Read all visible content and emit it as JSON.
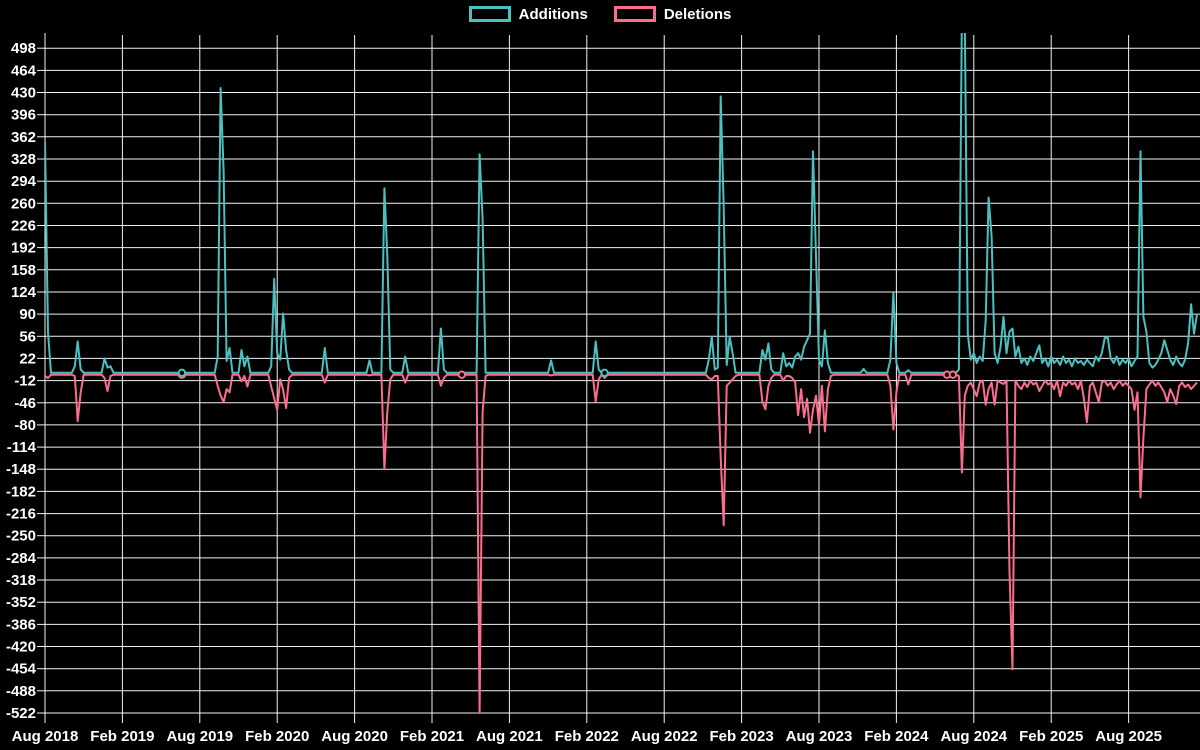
{
  "legend": {
    "items": [
      {
        "label": "Additions",
        "color": "#4bc0c0"
      },
      {
        "label": "Deletions",
        "color": "#fa6d8d"
      }
    ]
  },
  "colors": {
    "background": "#000000",
    "grid": "#f2f2f2",
    "text": "#ffffff",
    "additions": "#4bc0c0",
    "deletions": "#fa6d8d"
  },
  "chart_data": {
    "type": "line",
    "title": "",
    "xlabel": "",
    "ylabel": "",
    "x_unit": "week",
    "x_tick_labels": [
      "Aug 2018",
      "Feb 2019",
      "Aug 2019",
      "Feb 2020",
      "Aug 2020",
      "Feb 2021",
      "Aug 2021",
      "Feb 2022",
      "Aug 2022",
      "Feb 2023",
      "Aug 2023",
      "Feb 2024",
      "Aug 2024",
      "Feb 2025",
      "Aug 2025"
    ],
    "y_tick_labels": [
      498,
      464,
      430,
      396,
      362,
      328,
      294,
      260,
      226,
      192,
      158,
      124,
      90,
      56,
      22,
      -12,
      -46,
      -80,
      -114,
      -148,
      -182,
      -216,
      -250,
      -284,
      -318,
      -352,
      -386,
      -420,
      -454,
      -488,
      -522
    ],
    "y_min": -522,
    "y_max": 498,
    "y_tick_step": 34,
    "grid": true,
    "legend_position": "top",
    "weeks_total": 388,
    "baseline": {
      "additions": 0,
      "deletions": -3
    },
    "series": [
      {
        "name": "Additions",
        "color": "#4bc0c0",
        "column": 1
      },
      {
        "name": "Deletions",
        "color": "#fa6d8d",
        "column": 2
      }
    ],
    "points_format": "[week_index, additions, deletions]; weeks not listed sit at baseline",
    "points": [
      [
        0,
        355,
        -5
      ],
      [
        1,
        62,
        -8
      ],
      [
        2,
        0,
        -3
      ],
      [
        10,
        10,
        -5
      ],
      [
        11,
        48,
        -74
      ],
      [
        12,
        5,
        -30
      ],
      [
        13,
        0,
        -3
      ],
      [
        19,
        0,
        -3
      ],
      [
        20,
        22,
        -8
      ],
      [
        21,
        8,
        -28
      ],
      [
        22,
        10,
        -5
      ],
      [
        23,
        0,
        -3
      ],
      [
        45,
        0,
        -3
      ],
      [
        46,
        2,
        -5
      ],
      [
        47,
        0,
        -3
      ],
      [
        57,
        0,
        -3
      ],
      [
        58,
        25,
        -20
      ],
      [
        59,
        437,
        -35
      ],
      [
        60,
        310,
        -45
      ],
      [
        61,
        18,
        -25
      ],
      [
        62,
        38,
        -30
      ],
      [
        63,
        0,
        -3
      ],
      [
        65,
        0,
        -3
      ],
      [
        66,
        35,
        -13
      ],
      [
        67,
        10,
        -5
      ],
      [
        68,
        25,
        -21
      ],
      [
        69,
        0,
        -3
      ],
      [
        75,
        0,
        -3
      ],
      [
        76,
        10,
        -21
      ],
      [
        77,
        144,
        -39
      ],
      [
        78,
        30,
        -57
      ],
      [
        79,
        20,
        -10
      ],
      [
        80,
        91,
        -26
      ],
      [
        81,
        35,
        -54
      ],
      [
        82,
        5,
        -8
      ],
      [
        83,
        0,
        -3
      ],
      [
        93,
        0,
        -3
      ],
      [
        94,
        38,
        -15
      ],
      [
        95,
        0,
        -3
      ],
      [
        108,
        0,
        -3
      ],
      [
        109,
        19,
        -4
      ],
      [
        110,
        0,
        -3
      ],
      [
        113,
        0,
        -3
      ],
      [
        114,
        283,
        -148
      ],
      [
        115,
        180,
        -60
      ],
      [
        116,
        5,
        -10
      ],
      [
        117,
        0,
        -3
      ],
      [
        120,
        0,
        -3
      ],
      [
        121,
        25,
        -15
      ],
      [
        122,
        0,
        -3
      ],
      [
        132,
        0,
        -3
      ],
      [
        133,
        68,
        -20
      ],
      [
        134,
        5,
        -8
      ],
      [
        135,
        0,
        -3
      ],
      [
        139,
        0,
        -3
      ],
      [
        140,
        0,
        -8
      ],
      [
        141,
        0,
        -3
      ],
      [
        145,
        0,
        -3
      ],
      [
        146,
        335,
        -522
      ],
      [
        147,
        236,
        -60
      ],
      [
        148,
        0,
        -5
      ],
      [
        149,
        0,
        -3
      ],
      [
        169,
        0,
        -3
      ],
      [
        170,
        19,
        -4
      ],
      [
        171,
        0,
        -3
      ],
      [
        184,
        0,
        -3
      ],
      [
        185,
        48,
        -44
      ],
      [
        186,
        5,
        -10
      ],
      [
        187,
        0,
        -3
      ],
      [
        188,
        3,
        -8
      ],
      [
        189,
        0,
        -3
      ],
      [
        222,
        0,
        -3
      ],
      [
        223,
        20,
        -8
      ],
      [
        224,
        55,
        -10
      ],
      [
        225,
        5,
        -5
      ],
      [
        226,
        8,
        -5
      ],
      [
        227,
        424,
        -130
      ],
      [
        228,
        254,
        -234
      ],
      [
        229,
        12,
        -20
      ],
      [
        230,
        55,
        -15
      ],
      [
        231,
        30,
        -10
      ],
      [
        232,
        0,
        -5
      ],
      [
        233,
        0,
        -3
      ],
      [
        240,
        0,
        -3
      ],
      [
        241,
        35,
        -44
      ],
      [
        242,
        20,
        -56
      ],
      [
        243,
        45,
        -20
      ],
      [
        244,
        5,
        -8
      ],
      [
        245,
        0,
        -3
      ],
      [
        247,
        0,
        -3
      ],
      [
        248,
        30,
        -12
      ],
      [
        249,
        10,
        -5
      ],
      [
        250,
        15,
        -5
      ],
      [
        251,
        8,
        -8
      ],
      [
        252,
        25,
        -15
      ],
      [
        253,
        30,
        -65
      ],
      [
        254,
        20,
        -25
      ],
      [
        255,
        40,
        -68
      ],
      [
        256,
        50,
        -40
      ],
      [
        257,
        60,
        -92
      ],
      [
        258,
        340,
        -57
      ],
      [
        259,
        180,
        -35
      ],
      [
        260,
        20,
        -80
      ],
      [
        261,
        10,
        -20
      ],
      [
        262,
        65,
        -90
      ],
      [
        263,
        15,
        -25
      ],
      [
        264,
        0,
        -5
      ],
      [
        265,
        0,
        -3
      ],
      [
        274,
        0,
        -3
      ],
      [
        275,
        6,
        -3
      ],
      [
        276,
        0,
        -3
      ],
      [
        283,
        0,
        -3
      ],
      [
        284,
        20,
        -20
      ],
      [
        285,
        124,
        -87
      ],
      [
        286,
        15,
        -30
      ],
      [
        287,
        0,
        -3
      ],
      [
        289,
        0,
        -3
      ],
      [
        290,
        4,
        -18
      ],
      [
        291,
        0,
        -3
      ],
      [
        302,
        0,
        -3
      ],
      [
        303,
        0,
        -5
      ],
      [
        304,
        0,
        -3
      ],
      [
        305,
        0,
        -5
      ],
      [
        306,
        0,
        -3
      ],
      [
        307,
        5,
        -5
      ],
      [
        308,
        555,
        -153
      ],
      [
        309,
        540,
        -35
      ],
      [
        310,
        60,
        -20
      ],
      [
        311,
        20,
        -15
      ],
      [
        312,
        30,
        -25
      ],
      [
        313,
        15,
        -36
      ],
      [
        314,
        25,
        -15
      ],
      [
        315,
        18,
        -12
      ],
      [
        316,
        80,
        -49
      ],
      [
        317,
        269,
        -25
      ],
      [
        318,
        210,
        -15
      ],
      [
        319,
        30,
        -49
      ],
      [
        320,
        15,
        -12
      ],
      [
        321,
        40,
        -15
      ],
      [
        322,
        86,
        -17
      ],
      [
        323,
        30,
        -12
      ],
      [
        324,
        63,
        -305
      ],
      [
        325,
        68,
        -455
      ],
      [
        326,
        25,
        -12
      ],
      [
        327,
        40,
        -20
      ],
      [
        328,
        15,
        -25
      ],
      [
        329,
        22,
        -15
      ],
      [
        330,
        12,
        -22
      ],
      [
        331,
        25,
        -12
      ],
      [
        332,
        18,
        -18
      ],
      [
        333,
        30,
        -15
      ],
      [
        334,
        42,
        -28
      ],
      [
        335,
        15,
        -20
      ],
      [
        336,
        22,
        -12
      ],
      [
        337,
        10,
        -18
      ],
      [
        338,
        25,
        -15
      ],
      [
        339,
        15,
        -25
      ],
      [
        340,
        20,
        -12
      ],
      [
        341,
        12,
        -36
      ],
      [
        342,
        25,
        -15
      ],
      [
        343,
        15,
        -20
      ],
      [
        344,
        20,
        -12
      ],
      [
        345,
        10,
        -18
      ],
      [
        346,
        22,
        -15
      ],
      [
        347,
        15,
        -25
      ],
      [
        348,
        18,
        -12
      ],
      [
        349,
        12,
        -40
      ],
      [
        350,
        20,
        -76
      ],
      [
        351,
        15,
        -20
      ],
      [
        352,
        10,
        -15
      ],
      [
        353,
        25,
        -30
      ],
      [
        354,
        18,
        -45
      ],
      [
        355,
        30,
        -15
      ],
      [
        356,
        53,
        -12
      ],
      [
        357,
        55,
        -20
      ],
      [
        358,
        22,
        -15
      ],
      [
        359,
        15,
        -25
      ],
      [
        360,
        25,
        -18
      ],
      [
        361,
        12,
        -12
      ],
      [
        362,
        20,
        -20
      ],
      [
        363,
        15,
        -15
      ],
      [
        364,
        22,
        -20
      ],
      [
        365,
        10,
        -25
      ],
      [
        366,
        18,
        -57
      ],
      [
        367,
        25,
        -30
      ],
      [
        368,
        340,
        -191
      ],
      [
        369,
        86,
        -100
      ],
      [
        370,
        63,
        -25
      ],
      [
        371,
        15,
        -18
      ],
      [
        372,
        8,
        -12
      ],
      [
        373,
        12,
        -20
      ],
      [
        374,
        20,
        -15
      ],
      [
        375,
        30,
        -22
      ],
      [
        376,
        50,
        -30
      ],
      [
        377,
        35,
        -45
      ],
      [
        378,
        20,
        -25
      ],
      [
        379,
        12,
        -35
      ],
      [
        380,
        25,
        -48
      ],
      [
        381,
        15,
        -20
      ],
      [
        382,
        10,
        -15
      ],
      [
        383,
        20,
        -22
      ],
      [
        384,
        45,
        -18
      ],
      [
        385,
        105,
        -25
      ],
      [
        386,
        60,
        -20
      ],
      [
        387,
        90,
        -15
      ]
    ],
    "markers": [
      {
        "week": 46,
        "series": "both"
      },
      {
        "week": 140,
        "series": "deletions"
      },
      {
        "week": 188,
        "series": "additions"
      },
      {
        "week": 303,
        "series": "deletions"
      },
      {
        "week": 305,
        "series": "deletions"
      }
    ]
  }
}
